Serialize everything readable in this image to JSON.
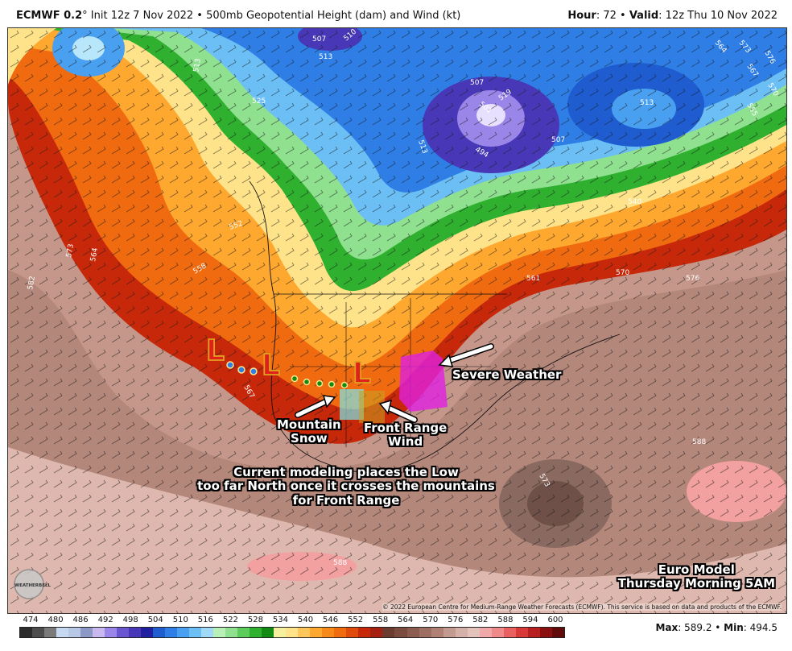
{
  "header": {
    "model": "ECMWF 0.2",
    "degree": "°",
    "init": " Init 12z 7 Nov 2022 • 500mb Geopotential Height (dam) and Wind (kt)",
    "hour_label": "Hour",
    "hour_value": ": 72 • ",
    "valid_label": "Valid",
    "valid_value": ": 12z Thu 10 Nov 2022"
  },
  "map": {
    "contour_labels": [
      "513",
      "507",
      "510",
      "513",
      "507",
      "501",
      "494",
      "507",
      "513",
      "519",
      "564",
      "573",
      "576",
      "567",
      "570",
      "555",
      "525",
      "540",
      "513",
      "573",
      "564",
      "558",
      "561",
      "570",
      "576",
      "582",
      "567",
      "588",
      "588",
      "573",
      "552"
    ],
    "annotations": {
      "severe": "Severe Weather",
      "mountain_snow_1": "Mountain",
      "mountain_snow_2": "Snow",
      "front_range_1": "Front Range",
      "front_range_2": "Wind",
      "modeling_1": "Current modeling places the Low",
      "modeling_2": "too far North once it crosses the mountains",
      "modeling_3": "for Front Range",
      "euro_1": "Euro Model",
      "euro_2": "Thursday Morning 5AM"
    },
    "low_symbol": "L",
    "copyright": "© 2022 European Centre for Medium-Range Weather Forecasts (ECMWF). This service is based on data and products of the ECMWF.",
    "logo_text": "WEATHERBELL"
  },
  "colorbar": {
    "labels": [
      "474",
      "480",
      "486",
      "492",
      "498",
      "504",
      "510",
      "516",
      "522",
      "528",
      "534",
      "540",
      "546",
      "552",
      "558",
      "564",
      "570",
      "576",
      "582",
      "588",
      "594",
      "600"
    ],
    "colors": [
      "#2b2b2b",
      "#4d4d4d",
      "#7a7a7a",
      "#c6d9f0",
      "#b7c8e6",
      "#8c99c7",
      "#c9b7f0",
      "#9a86e8",
      "#6a56d0",
      "#4838b8",
      "#1f1f9f",
      "#1e5ccf",
      "#2e7ee6",
      "#4aa0f0",
      "#6cbff5",
      "#9fd9f7",
      "#b8f0b8",
      "#8fe08f",
      "#5ccc5c",
      "#2fb02f",
      "#138a13",
      "#f5f0a0",
      "#ffe38a",
      "#ffc65c",
      "#ffa830",
      "#f7881a",
      "#f06a10",
      "#e04a0a",
      "#c8280a",
      "#a52010",
      "#6b3b30",
      "#7b4b40",
      "#8c5c50",
      "#9e6e62",
      "#b08075",
      "#c29a90",
      "#d4b0a8",
      "#e2c2ba",
      "#f0a8a8",
      "#f08a8a",
      "#e86060",
      "#d83838",
      "#b82020",
      "#8a1010",
      "#600a0a"
    ]
  },
  "stats": {
    "max_label": "Max",
    "max_value": ": 589.2 • ",
    "min_label": "Min",
    "min_value": ": 494.5"
  }
}
